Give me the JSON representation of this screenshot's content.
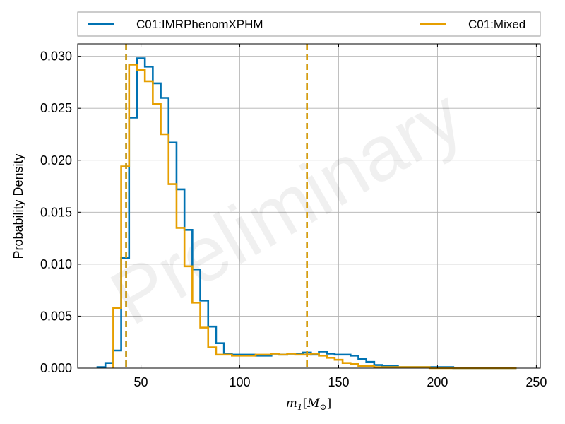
{
  "chart_data": {
    "type": "histogram",
    "xlabel": "m_1[M_⊙]",
    "ylabel": "Probability Density",
    "xlim": [
      18,
      252
    ],
    "ylim": [
      0,
      0.0312
    ],
    "xticks": [
      50,
      100,
      150,
      200,
      250
    ],
    "yticks": [
      0.0,
      0.005,
      0.01,
      0.015,
      0.02,
      0.025,
      0.03
    ],
    "xtick_labels": [
      "50",
      "100",
      "150",
      "200",
      "250"
    ],
    "ytick_labels": [
      "0.000",
      "0.005",
      "0.010",
      "0.015",
      "0.020",
      "0.025",
      "0.030"
    ],
    "grid": true,
    "legend_position": "top (above plot)",
    "watermark": "Preliminary",
    "series": [
      {
        "name": "C01:IMRPhenomXPHM",
        "color": "#0072b2",
        "bin_width": 4,
        "x_start": 28,
        "values": [
          0.0001,
          0.0005,
          0.0017,
          0.0106,
          0.0241,
          0.0298,
          0.029,
          0.0274,
          0.026,
          0.0217,
          0.0172,
          0.0133,
          0.0095,
          0.0065,
          0.004,
          0.0024,
          0.0014,
          0.0013,
          0.0013,
          0.0013,
          0.0012,
          0.0012,
          0.0014,
          0.0013,
          0.0014,
          0.0014,
          0.0015,
          0.0013,
          0.0016,
          0.0014,
          0.0013,
          0.0013,
          0.0012,
          0.0009,
          0.0006,
          0.0003,
          0.0002,
          0.0002,
          0.0001,
          0.0001,
          0.0001,
          0.0001,
          0.0001,
          0.0001,
          0.0001,
          0.0,
          0.0,
          0.0,
          0.0,
          0.0,
          0.0,
          0.0,
          0.0
        ],
        "credible_interval": [
          42.5,
          134
        ]
      },
      {
        "name": "C01:Mixed",
        "color": "#e69f00",
        "bin_width": 4,
        "x_start": 36,
        "values": [
          0.0058,
          0.0194,
          0.0292,
          0.0287,
          0.0276,
          0.0254,
          0.0225,
          0.0177,
          0.0135,
          0.0098,
          0.0063,
          0.0039,
          0.002,
          0.0013,
          0.0013,
          0.0012,
          0.0012,
          0.0012,
          0.0013,
          0.0013,
          0.0014,
          0.0013,
          0.0014,
          0.0013,
          0.0013,
          0.0014,
          0.0012,
          0.001,
          0.0008,
          0.0005,
          0.0004,
          0.0002,
          0.0002,
          0.0001,
          0.0001,
          0.0001,
          0.0001,
          0.0001,
          0.0001,
          0.0001,
          0.0,
          0.0,
          0.0,
          0.0,
          0.0,
          0.0,
          0.0,
          0.0,
          0.0,
          0.0,
          0.0
        ],
        "credible_interval": [
          42.5,
          134
        ]
      }
    ]
  }
}
